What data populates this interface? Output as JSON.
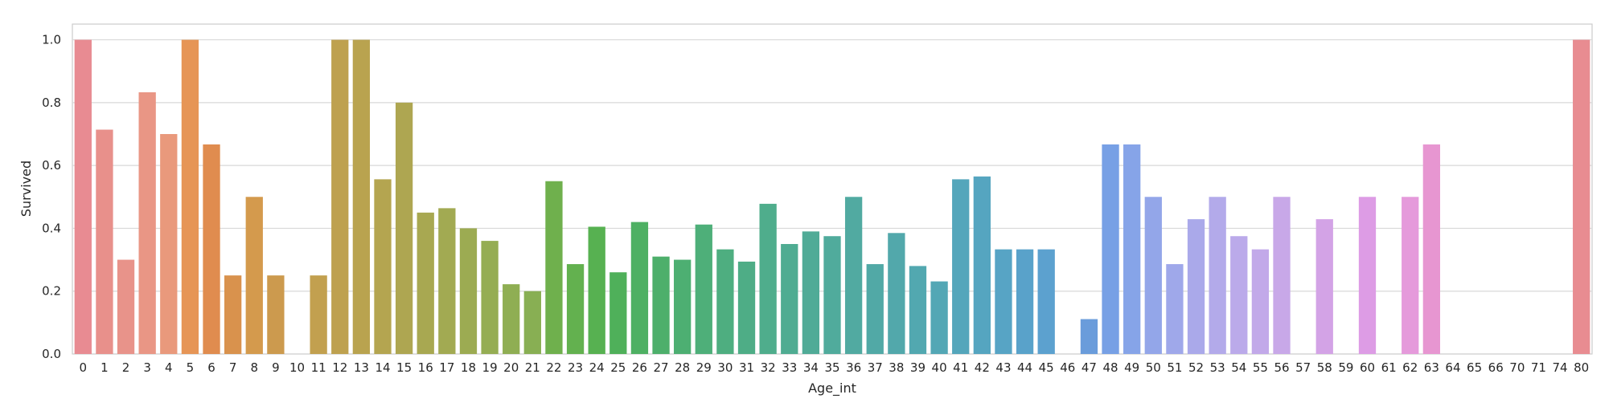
{
  "chart_data": {
    "type": "bar",
    "xlabel": "Age_int",
    "ylabel": "Survived",
    "ylim": [
      0,
      1.05
    ],
    "yticks": [
      "0.0",
      "0.2",
      "0.4",
      "0.6",
      "0.8",
      "1.0"
    ],
    "grid": true,
    "categories": [
      "0",
      "1",
      "2",
      "3",
      "4",
      "5",
      "6",
      "7",
      "8",
      "9",
      "10",
      "11",
      "12",
      "13",
      "14",
      "15",
      "16",
      "17",
      "18",
      "19",
      "20",
      "21",
      "22",
      "23",
      "24",
      "25",
      "26",
      "27",
      "28",
      "29",
      "30",
      "31",
      "32",
      "33",
      "34",
      "35",
      "36",
      "37",
      "38",
      "39",
      "40",
      "41",
      "42",
      "43",
      "44",
      "45",
      "46",
      "47",
      "48",
      "49",
      "50",
      "51",
      "52",
      "53",
      "54",
      "55",
      "56",
      "57",
      "58",
      "59",
      "60",
      "61",
      "62",
      "63",
      "64",
      "65",
      "66",
      "70",
      "71",
      "74",
      "80"
    ],
    "values": [
      1.0,
      0.714,
      0.3,
      0.833,
      0.7,
      1.0,
      0.667,
      0.25,
      0.5,
      0.25,
      0.0,
      0.25,
      1.0,
      1.0,
      0.556,
      0.8,
      0.45,
      0.464,
      0.4,
      0.36,
      0.222,
      0.2,
      0.55,
      0.286,
      0.405,
      0.26,
      0.42,
      0.31,
      0.3,
      0.412,
      0.333,
      0.294,
      0.478,
      0.35,
      0.39,
      0.375,
      0.5,
      0.286,
      0.385,
      0.28,
      0.231,
      0.556,
      0.565,
      0.333,
      0.333,
      0.333,
      0.0,
      0.111,
      0.667,
      0.667,
      0.5,
      0.286,
      0.429,
      0.5,
      0.375,
      0.333,
      0.5,
      0.0,
      0.429,
      0.0,
      0.5,
      0.0,
      0.5,
      0.667,
      0.0,
      0.0,
      0.0,
      0.0,
      0.0,
      0.0,
      1.0
    ],
    "colors": [
      "#e88b92",
      "#e8908b",
      "#e8938a",
      "#e99685",
      "#e9997c",
      "#e69556",
      "#e08c4f",
      "#d9924d",
      "#d49a4d",
      "#cc9a4e",
      "#c69f4e",
      "#c2a04f",
      "#bea14f",
      "#b9a34f",
      "#b4a550",
      "#aea651",
      "#a8a851",
      "#a2aa52",
      "#9cab52",
      "#95ad53",
      "#8fae53",
      "#88af53",
      "#6fb04d",
      "#63b14f",
      "#57b151",
      "#4fb05a",
      "#4eb063",
      "#4daf6b",
      "#4daf72",
      "#4eaf79",
      "#4eae80",
      "#4ead86",
      "#4fad8c",
      "#4fac92",
      "#50ab97",
      "#50ab9c",
      "#51aaa1",
      "#51a9a6",
      "#52a8ab",
      "#52a8b0",
      "#53a7b5",
      "#54a6bb",
      "#55a5c0",
      "#57a4c5",
      "#59a2ca",
      "#5ca1cf",
      "#609fd4",
      "#6a9cdb",
      "#77a0e5",
      "#86a4e8",
      "#93a6e9",
      "#9fa8ea",
      "#aaa9ea",
      "#b3aaea",
      "#bbaaea",
      "#c2a9e9",
      "#c8a8e8",
      "#cea6e7",
      "#d3a3e6",
      "#d8a0e6",
      "#dd9ce5",
      "#e29ce2",
      "#e59adb",
      "#e796d1",
      "#e894c8",
      "#e893bf",
      "#e892b5",
      "#e890ab",
      "#e88ea1",
      "#e88c97",
      "#e88c91"
    ]
  }
}
